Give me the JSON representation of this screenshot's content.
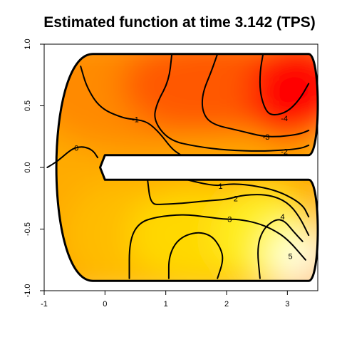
{
  "chart_data": {
    "type": "heatmap",
    "title": "Estimated function at time 3.142 (TPS)",
    "xlabel": "",
    "ylabel": "",
    "xlim": [
      -1,
      3.5
    ],
    "ylim": [
      -1,
      1
    ],
    "x_ticks": [
      -1,
      0,
      1,
      2,
      3
    ],
    "y_ticks": [
      -1.0,
      -0.5,
      0.0,
      0.5,
      1.0
    ],
    "x_tick_labels": [
      "-1",
      "0",
      "1",
      "2",
      "3"
    ],
    "y_tick_labels": [
      "-1.0",
      "-0.5",
      "0.0",
      "0.5",
      "1.0"
    ],
    "colormap": "heat (red to white)",
    "color_min": "#ff0000",
    "color_max": "#ffffff",
    "domain": "horseshoe (C-shaped) region",
    "contour_levels": [
      -4,
      -3,
      -2,
      -1,
      0,
      1,
      2,
      3,
      4,
      5
    ],
    "contour_labels": [
      {
        "text": "-4",
        "x": 2.95,
        "y": 0.4
      },
      {
        "text": "-3",
        "x": 2.65,
        "y": 0.25
      },
      {
        "text": "-2",
        "x": 2.95,
        "y": 0.13
      },
      {
        "text": "-1",
        "x": 0.5,
        "y": 0.39
      },
      {
        "text": "0",
        "x": -0.47,
        "y": 0.16
      },
      {
        "text": "1",
        "x": 1.9,
        "y": -0.15
      },
      {
        "text": "2",
        "x": 2.15,
        "y": -0.25
      },
      {
        "text": "3",
        "x": 2.05,
        "y": -0.42
      },
      {
        "text": "4",
        "x": 2.92,
        "y": -0.4
      },
      {
        "text": "5",
        "x": 3.05,
        "y": -0.72
      }
    ],
    "contours": [
      {
        "level": -4,
        "points": [
          [
            2.6,
            0.92
          ],
          [
            2.55,
            0.78
          ],
          [
            2.55,
            0.6
          ],
          [
            2.65,
            0.45
          ],
          [
            2.78,
            0.42
          ],
          [
            3.0,
            0.45
          ],
          [
            3.2,
            0.55
          ],
          [
            3.35,
            0.68
          ]
        ]
      },
      {
        "level": -3,
        "points": [
          [
            1.85,
            0.92
          ],
          [
            1.75,
            0.78
          ],
          [
            1.6,
            0.6
          ],
          [
            1.6,
            0.45
          ],
          [
            1.75,
            0.35
          ],
          [
            2.2,
            0.3
          ],
          [
            2.6,
            0.25
          ],
          [
            2.9,
            0.25
          ],
          [
            3.2,
            0.27
          ],
          [
            3.35,
            0.3
          ]
        ]
      },
      {
        "level": -2,
        "points": [
          [
            1.1,
            0.92
          ],
          [
            1.05,
            0.7
          ],
          [
            0.85,
            0.52
          ],
          [
            0.8,
            0.38
          ],
          [
            1.05,
            0.22
          ],
          [
            1.5,
            0.17
          ],
          [
            2.0,
            0.14
          ],
          [
            2.6,
            0.13
          ],
          [
            3.2,
            0.15
          ],
          [
            3.35,
            0.18
          ]
        ]
      },
      {
        "level": -1,
        "points": [
          [
            -0.4,
            0.82
          ],
          [
            -0.3,
            0.65
          ],
          [
            -0.08,
            0.48
          ],
          [
            0.3,
            0.4
          ],
          [
            0.5,
            0.39
          ],
          [
            0.7,
            0.37
          ],
          [
            0.9,
            0.28
          ],
          [
            1.1,
            0.15
          ],
          [
            1.25,
            0.1
          ]
        ]
      },
      {
        "level": 0,
        "points": [
          [
            -0.95,
            0.0
          ],
          [
            -0.78,
            0.05
          ],
          [
            -0.62,
            0.12
          ],
          [
            -0.5,
            0.16
          ],
          [
            -0.35,
            0.17
          ],
          [
            -0.2,
            0.14
          ],
          [
            -0.12,
            0.08
          ]
        ]
      },
      {
        "level": 1,
        "points": [
          [
            1.35,
            -0.1
          ],
          [
            1.6,
            -0.13
          ],
          [
            1.85,
            -0.15
          ],
          [
            2.1,
            -0.13
          ],
          [
            2.5,
            -0.15
          ],
          [
            2.9,
            -0.2
          ],
          [
            3.25,
            -0.3
          ],
          [
            3.35,
            -0.4
          ]
        ]
      },
      {
        "level": 2,
        "points": [
          [
            0.7,
            -0.1
          ],
          [
            0.75,
            -0.3
          ],
          [
            0.95,
            -0.3
          ],
          [
            1.3,
            -0.29
          ],
          [
            1.7,
            -0.27
          ],
          [
            2.0,
            -0.26
          ],
          [
            2.3,
            -0.22
          ],
          [
            2.7,
            -0.22
          ],
          [
            3.0,
            -0.28
          ],
          [
            3.2,
            -0.4
          ],
          [
            3.35,
            -0.55
          ]
        ]
      },
      {
        "level": 3,
        "points": [
          [
            0.4,
            -0.9
          ],
          [
            0.4,
            -0.6
          ],
          [
            0.55,
            -0.45
          ],
          [
            0.85,
            -0.4
          ],
          [
            1.3,
            -0.38
          ],
          [
            1.65,
            -0.4
          ],
          [
            1.95,
            -0.42
          ],
          [
            2.2,
            -0.42
          ],
          [
            2.5,
            -0.45
          ],
          [
            2.75,
            -0.5
          ],
          [
            3.0,
            -0.58
          ],
          [
            3.3,
            -0.75
          ]
        ]
      },
      {
        "level": 4,
        "points": [
          [
            1.05,
            -0.9
          ],
          [
            1.05,
            -0.72
          ],
          [
            1.2,
            -0.58
          ],
          [
            1.5,
            -0.52
          ],
          [
            1.75,
            -0.55
          ],
          [
            1.9,
            -0.65
          ],
          [
            1.95,
            -0.75
          ],
          [
            1.85,
            -0.9
          ]
        ]
      },
      {
        "level": 5,
        "points": [
          [
            2.55,
            -0.9
          ],
          [
            2.5,
            -0.65
          ],
          [
            2.6,
            -0.5
          ],
          [
            2.8,
            -0.42
          ],
          [
            2.95,
            -0.43
          ],
          [
            3.1,
            -0.52
          ],
          [
            3.25,
            -0.6
          ]
        ]
      }
    ]
  }
}
